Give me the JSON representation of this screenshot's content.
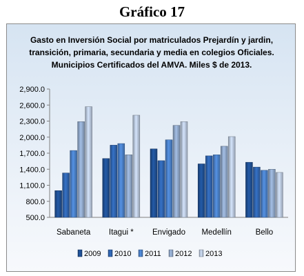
{
  "page": {
    "heading": "Gráfico 17"
  },
  "chart_data": {
    "type": "bar",
    "title_lines": [
      "Gasto en Inversión Social por matriculados Prejardín y jardin,",
      "transición, primaria, secundaria y media en colegios Oficiales.",
      "Municipios Certificados del AMVA.  Miles $ de 2013."
    ],
    "categories": [
      "Sabaneta",
      "Itagui  *",
      "Envigado",
      "Medellín",
      "Bello"
    ],
    "series": [
      {
        "name": "2009",
        "color": "#1f4f92",
        "values": [
          1000,
          1600,
          1780,
          1500,
          1530
        ]
      },
      {
        "name": "2010",
        "color": "#2f63ad",
        "values": [
          1330,
          1850,
          1560,
          1650,
          1440
        ]
      },
      {
        "name": "2011",
        "color": "#4a7fc6",
        "values": [
          1750,
          1880,
          1950,
          1670,
          1380
        ]
      },
      {
        "name": "2012",
        "color": "#8fa6c8",
        "values": [
          2290,
          1670,
          2220,
          1830,
          1400
        ]
      },
      {
        "name": "2013",
        "color": "#b8c6db",
        "values": [
          2570,
          2410,
          2290,
          2010,
          1340
        ]
      }
    ],
    "y_ticks": [
      "2,900.0",
      "2,600.0",
      "2,300.0",
      "2,000.0",
      "1,700.0",
      "1,400.0",
      "1,100.0",
      "800.0",
      "500.0"
    ],
    "ylim": [
      500,
      2900
    ],
    "grid": false,
    "legend_position": "bottom"
  }
}
